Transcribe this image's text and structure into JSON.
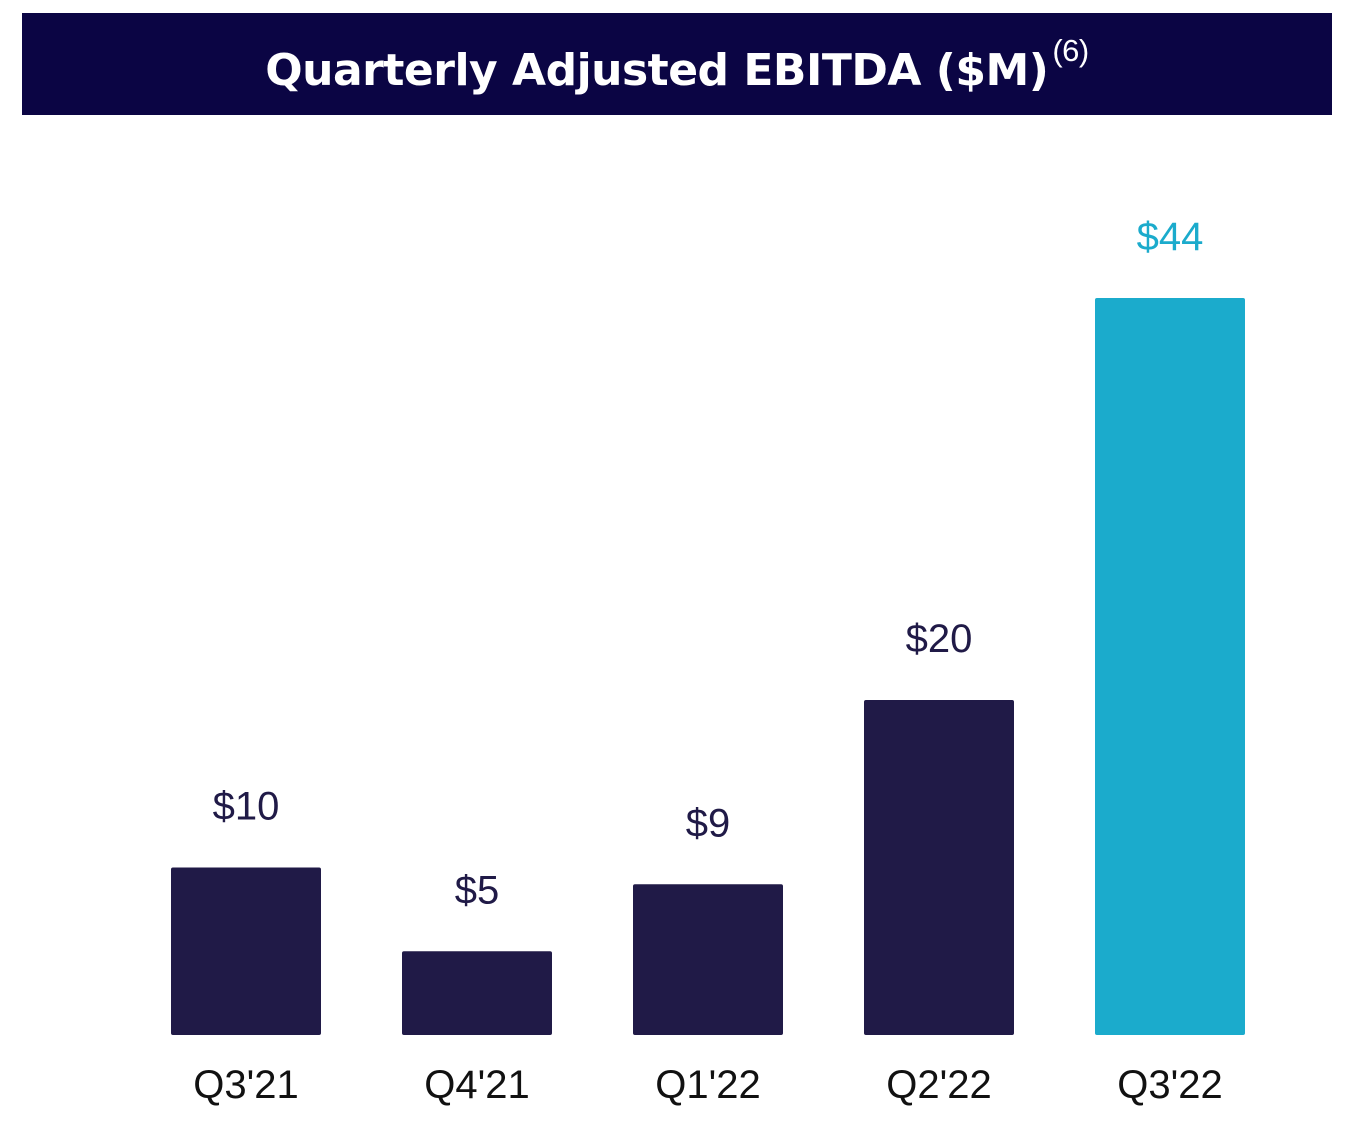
{
  "title": {
    "text": "Quarterly Adjusted EBITDA ($M)",
    "footnote": "(6)"
  },
  "colors": {
    "banner": "#0b0544",
    "bar_default": "#201a47",
    "bar_highlight": "#1babcc",
    "label_default": "#201a47",
    "label_highlight": "#1babcc"
  },
  "chart_data": {
    "type": "bar",
    "title": "Quarterly Adjusted EBITDA ($M)",
    "categories": [
      "Q3'21",
      "Q4'21",
      "Q1'22",
      "Q2'22",
      "Q3'22"
    ],
    "values": [
      10,
      5,
      9,
      20,
      44
    ],
    "value_labels": [
      "$10",
      "$5",
      "$9",
      "$20",
      "$44"
    ],
    "highlight_index": 4,
    "xlabel": "",
    "ylabel": "",
    "grid": false
  }
}
